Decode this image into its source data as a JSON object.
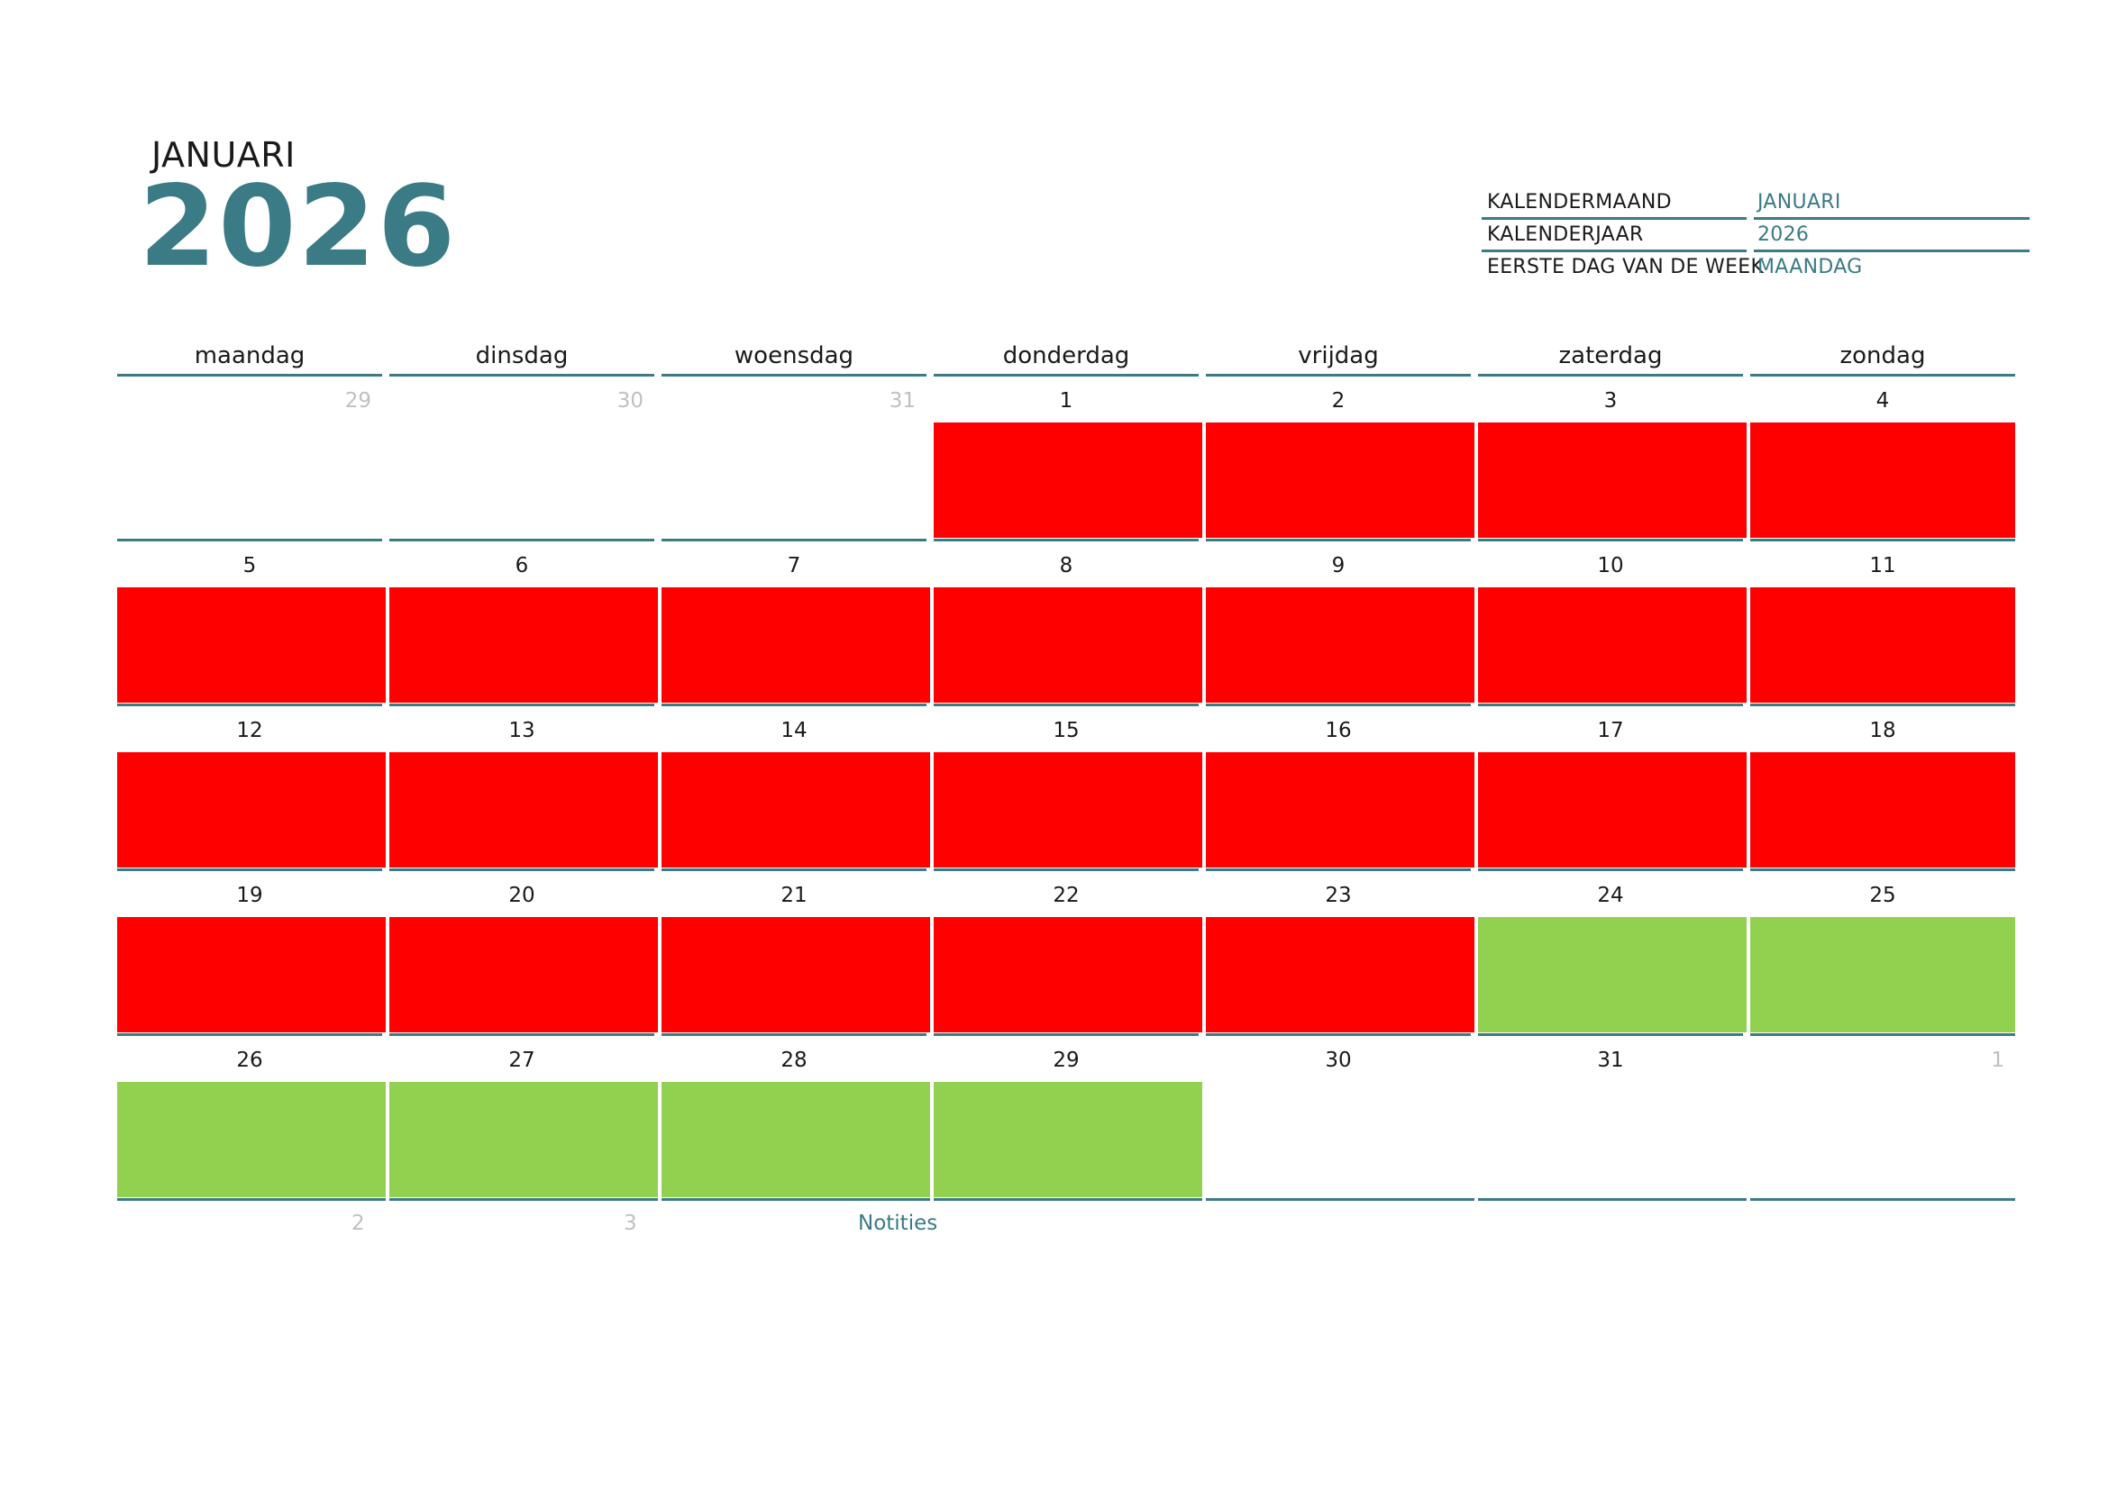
{
  "header": {
    "month": "JANUARI",
    "year": "2026"
  },
  "info": [
    {
      "label": "KALENDERMAAND",
      "value": "JANUARI"
    },
    {
      "label": "KALENDERJAAR",
      "value": "2026"
    },
    {
      "label": "EERSTE DAG VAN DE WEEK",
      "value": "MAANDAG"
    }
  ],
  "weekdays": [
    "maandag",
    "dinsdag",
    "woensdag",
    "donderdag",
    "vrijdag",
    "zaterdag",
    "zondag"
  ],
  "weeks": [
    [
      {
        "day": "29",
        "outside": true,
        "fill": ""
      },
      {
        "day": "30",
        "outside": true,
        "fill": ""
      },
      {
        "day": "31",
        "outside": true,
        "fill": ""
      },
      {
        "day": "1",
        "outside": false,
        "fill": "red"
      },
      {
        "day": "2",
        "outside": false,
        "fill": "red"
      },
      {
        "day": "3",
        "outside": false,
        "fill": "red"
      },
      {
        "day": "4",
        "outside": false,
        "fill": "red"
      }
    ],
    [
      {
        "day": "5",
        "outside": false,
        "fill": "red"
      },
      {
        "day": "6",
        "outside": false,
        "fill": "red"
      },
      {
        "day": "7",
        "outside": false,
        "fill": "red"
      },
      {
        "day": "8",
        "outside": false,
        "fill": "red"
      },
      {
        "day": "9",
        "outside": false,
        "fill": "red"
      },
      {
        "day": "10",
        "outside": false,
        "fill": "red"
      },
      {
        "day": "11",
        "outside": false,
        "fill": "red"
      }
    ],
    [
      {
        "day": "12",
        "outside": false,
        "fill": "red"
      },
      {
        "day": "13",
        "outside": false,
        "fill": "red"
      },
      {
        "day": "14",
        "outside": false,
        "fill": "red"
      },
      {
        "day": "15",
        "outside": false,
        "fill": "red"
      },
      {
        "day": "16",
        "outside": false,
        "fill": "red"
      },
      {
        "day": "17",
        "outside": false,
        "fill": "red"
      },
      {
        "day": "18",
        "outside": false,
        "fill": "red"
      }
    ],
    [
      {
        "day": "19",
        "outside": false,
        "fill": "red"
      },
      {
        "day": "20",
        "outside": false,
        "fill": "red"
      },
      {
        "day": "21",
        "outside": false,
        "fill": "red"
      },
      {
        "day": "22",
        "outside": false,
        "fill": "red"
      },
      {
        "day": "23",
        "outside": false,
        "fill": "red"
      },
      {
        "day": "24",
        "outside": false,
        "fill": "green"
      },
      {
        "day": "25",
        "outside": false,
        "fill": "green"
      }
    ],
    [
      {
        "day": "26",
        "outside": false,
        "fill": "green"
      },
      {
        "day": "27",
        "outside": false,
        "fill": "green"
      },
      {
        "day": "28",
        "outside": false,
        "fill": "green"
      },
      {
        "day": "29",
        "outside": false,
        "fill": "green"
      },
      {
        "day": "30",
        "outside": false,
        "fill": ""
      },
      {
        "day": "31",
        "outside": false,
        "fill": ""
      },
      {
        "day": "1",
        "outside": true,
        "fill": ""
      }
    ]
  ],
  "footer": {
    "extra_days": [
      "2",
      "3"
    ],
    "notes_label": "Notities"
  },
  "colors": {
    "accent": "#3a7b86",
    "red": "#ff0000",
    "green": "#92d050"
  }
}
